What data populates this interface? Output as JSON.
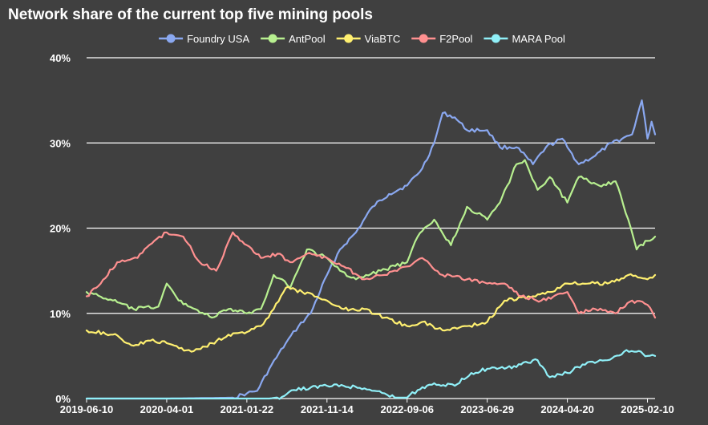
{
  "chart_data": {
    "type": "line",
    "title": "Network share of the current top five mining pools",
    "xlabel": "",
    "ylabel": "",
    "x_range": [
      "2019-06-10",
      "2025-03-10"
    ],
    "ylim": [
      0,
      40
    ],
    "y_ticks": [
      "0%",
      "10%",
      "20%",
      "30%",
      "40%"
    ],
    "x_ticks": [
      "2019-06-10",
      "2020-04-01",
      "2021-01-22",
      "2021-11-14",
      "2022-09-06",
      "2023-06-29",
      "2024-04-20",
      "2025-02-10"
    ],
    "grid": "horizontal",
    "legend_position": "top",
    "series": [
      {
        "name": "Foundry USA",
        "color": "#8aa8f0",
        "points": [
          [
            "2019-06-10",
            0
          ],
          [
            "2020-04-01",
            0
          ],
          [
            "2020-12-01",
            0.1
          ],
          [
            "2021-01-22",
            0.6
          ],
          [
            "2021-03-01",
            0.9
          ],
          [
            "2021-04-15",
            3.5
          ],
          [
            "2021-06-15",
            6.5
          ],
          [
            "2021-08-01",
            8.5
          ],
          [
            "2021-09-15",
            10.0
          ],
          [
            "2021-11-14",
            14.5
          ],
          [
            "2022-01-01",
            17.5
          ],
          [
            "2022-03-01",
            19.5
          ],
          [
            "2022-05-01",
            22.5
          ],
          [
            "2022-07-01",
            24.0
          ],
          [
            "2022-09-06",
            25.0
          ],
          [
            "2022-11-01",
            27.0
          ],
          [
            "2022-12-15",
            30.0
          ],
          [
            "2023-01-15",
            33.5
          ],
          [
            "2023-03-01",
            33.0
          ],
          [
            "2023-04-15",
            31.5
          ],
          [
            "2023-06-29",
            31.5
          ],
          [
            "2023-08-15",
            29.5
          ],
          [
            "2023-10-15",
            29.5
          ],
          [
            "2023-12-15",
            27.5
          ],
          [
            "2024-02-01",
            29.5
          ],
          [
            "2024-04-01",
            30.5
          ],
          [
            "2024-04-20",
            29.5
          ],
          [
            "2024-06-01",
            27.5
          ],
          [
            "2024-08-01",
            28.5
          ],
          [
            "2024-10-01",
            30.0
          ],
          [
            "2024-12-15",
            31.0
          ],
          [
            "2025-01-20",
            35.0
          ],
          [
            "2025-02-10",
            30.5
          ],
          [
            "2025-02-25",
            32.5
          ],
          [
            "2025-03-10",
            31.0
          ]
        ]
      },
      {
        "name": "AntPool",
        "color": "#b8f090",
        "points": [
          [
            "2019-06-10",
            12.5
          ],
          [
            "2019-09-15",
            11.5
          ],
          [
            "2019-12-01",
            10.5
          ],
          [
            "2020-03-01",
            10.8
          ],
          [
            "2020-04-01",
            13.5
          ],
          [
            "2020-05-15",
            11.5
          ],
          [
            "2020-07-15",
            10.5
          ],
          [
            "2020-09-15",
            9.5
          ],
          [
            "2020-11-15",
            10.5
          ],
          [
            "2021-01-22",
            10.0
          ],
          [
            "2021-03-15",
            10.5
          ],
          [
            "2021-05-01",
            14.5
          ],
          [
            "2021-06-01",
            14.0
          ],
          [
            "2021-07-01",
            13.0
          ],
          [
            "2021-09-01",
            17.5
          ],
          [
            "2021-11-14",
            16.5
          ],
          [
            "2022-01-01",
            15.0
          ],
          [
            "2022-03-01",
            14.0
          ],
          [
            "2022-06-01",
            15.0
          ],
          [
            "2022-09-06",
            16.0
          ],
          [
            "2022-10-15",
            19.0
          ],
          [
            "2022-12-15",
            21.0
          ],
          [
            "2023-02-15",
            18.0
          ],
          [
            "2023-04-15",
            22.5
          ],
          [
            "2023-06-29",
            21.0
          ],
          [
            "2023-08-15",
            23.0
          ],
          [
            "2023-10-15",
            27.5
          ],
          [
            "2023-11-15",
            28.0
          ],
          [
            "2024-01-01",
            24.5
          ],
          [
            "2024-02-15",
            26.0
          ],
          [
            "2024-04-20",
            23.0
          ],
          [
            "2024-06-01",
            26.0
          ],
          [
            "2024-08-15",
            25.0
          ],
          [
            "2024-10-15",
            25.5
          ],
          [
            "2024-12-01",
            21.0
          ],
          [
            "2025-01-01",
            17.5
          ],
          [
            "2025-02-10",
            18.5
          ],
          [
            "2025-03-10",
            19.0
          ]
        ]
      },
      {
        "name": "ViaBTC",
        "color": "#fff070",
        "points": [
          [
            "2019-06-10",
            8.0
          ],
          [
            "2019-09-15",
            7.5
          ],
          [
            "2019-12-01",
            6.2
          ],
          [
            "2020-02-01",
            6.8
          ],
          [
            "2020-04-01",
            6.5
          ],
          [
            "2020-07-01",
            5.5
          ],
          [
            "2020-09-15",
            6.5
          ],
          [
            "2020-11-15",
            7.5
          ],
          [
            "2021-01-22",
            7.8
          ],
          [
            "2021-03-15",
            8.5
          ],
          [
            "2021-05-01",
            10.5
          ],
          [
            "2021-06-15",
            13.0
          ],
          [
            "2021-08-15",
            12.5
          ],
          [
            "2021-11-14",
            11.5
          ],
          [
            "2022-01-15",
            10.5
          ],
          [
            "2022-04-01",
            10.5
          ],
          [
            "2022-06-15",
            9.5
          ],
          [
            "2022-09-06",
            8.5
          ],
          [
            "2022-11-01",
            9.0
          ],
          [
            "2023-01-15",
            8.0
          ],
          [
            "2023-04-15",
            8.5
          ],
          [
            "2023-06-29",
            9.0
          ],
          [
            "2023-09-01",
            11.5
          ],
          [
            "2023-12-15",
            12.0
          ],
          [
            "2024-02-15",
            12.5
          ],
          [
            "2024-04-20",
            13.5
          ],
          [
            "2024-06-15",
            13.5
          ],
          [
            "2024-09-15",
            13.5
          ],
          [
            "2024-12-01",
            14.5
          ],
          [
            "2025-02-10",
            14.0
          ],
          [
            "2025-03-10",
            14.5
          ]
        ]
      },
      {
        "name": "F2Pool",
        "color": "#ff9090",
        "points": [
          [
            "2019-06-10",
            12.0
          ],
          [
            "2019-08-01",
            13.5
          ],
          [
            "2019-10-01",
            16.0
          ],
          [
            "2019-12-15",
            16.5
          ],
          [
            "2020-02-15",
            18.5
          ],
          [
            "2020-04-01",
            19.5
          ],
          [
            "2020-06-01",
            19.0
          ],
          [
            "2020-08-01",
            16.0
          ],
          [
            "2020-10-01",
            15.0
          ],
          [
            "2020-12-01",
            19.5
          ],
          [
            "2021-01-22",
            18.0
          ],
          [
            "2021-03-15",
            16.5
          ],
          [
            "2021-05-15",
            17.0
          ],
          [
            "2021-07-01",
            16.0
          ],
          [
            "2021-09-01",
            17.0
          ],
          [
            "2021-11-14",
            16.5
          ],
          [
            "2022-01-15",
            15.5
          ],
          [
            "2022-04-01",
            14.0
          ],
          [
            "2022-06-15",
            14.5
          ],
          [
            "2022-09-06",
            15.5
          ],
          [
            "2022-11-01",
            16.5
          ],
          [
            "2023-01-15",
            14.5
          ],
          [
            "2023-04-15",
            14.0
          ],
          [
            "2023-06-29",
            13.5
          ],
          [
            "2023-09-01",
            13.5
          ],
          [
            "2023-11-01",
            12.0
          ],
          [
            "2024-01-15",
            11.5
          ],
          [
            "2024-04-20",
            12.5
          ],
          [
            "2024-06-01",
            10.0
          ],
          [
            "2024-08-01",
            10.5
          ],
          [
            "2024-10-15",
            10.0
          ],
          [
            "2024-12-15",
            11.5
          ],
          [
            "2025-02-10",
            11.0
          ],
          [
            "2025-03-10",
            9.5
          ]
        ]
      },
      {
        "name": "MARA Pool",
        "color": "#90f0f8",
        "points": [
          [
            "2019-06-10",
            0
          ],
          [
            "2021-04-15",
            0
          ],
          [
            "2021-06-01",
            0.2
          ],
          [
            "2021-07-15",
            1.0
          ],
          [
            "2021-09-15",
            1.3
          ],
          [
            "2021-11-14",
            1.5
          ],
          [
            "2022-01-15",
            1.5
          ],
          [
            "2022-04-01",
            1.2
          ],
          [
            "2022-06-15",
            0.6
          ],
          [
            "2022-08-01",
            0.1
          ],
          [
            "2022-09-06",
            0.1
          ],
          [
            "2022-10-15",
            1.0
          ],
          [
            "2022-12-15",
            1.8
          ],
          [
            "2023-03-01",
            1.5
          ],
          [
            "2023-05-01",
            3.0
          ],
          [
            "2023-06-29",
            3.5
          ],
          [
            "2023-09-01",
            3.5
          ],
          [
            "2023-11-01",
            4.0
          ],
          [
            "2024-01-01",
            4.5
          ],
          [
            "2024-02-15",
            2.5
          ],
          [
            "2024-04-20",
            3.0
          ],
          [
            "2024-06-15",
            4.0
          ],
          [
            "2024-09-15",
            4.5
          ],
          [
            "2024-11-15",
            5.5
          ],
          [
            "2025-01-01",
            5.5
          ],
          [
            "2025-02-10",
            5.0
          ],
          [
            "2025-03-10",
            5.0
          ]
        ]
      }
    ]
  }
}
